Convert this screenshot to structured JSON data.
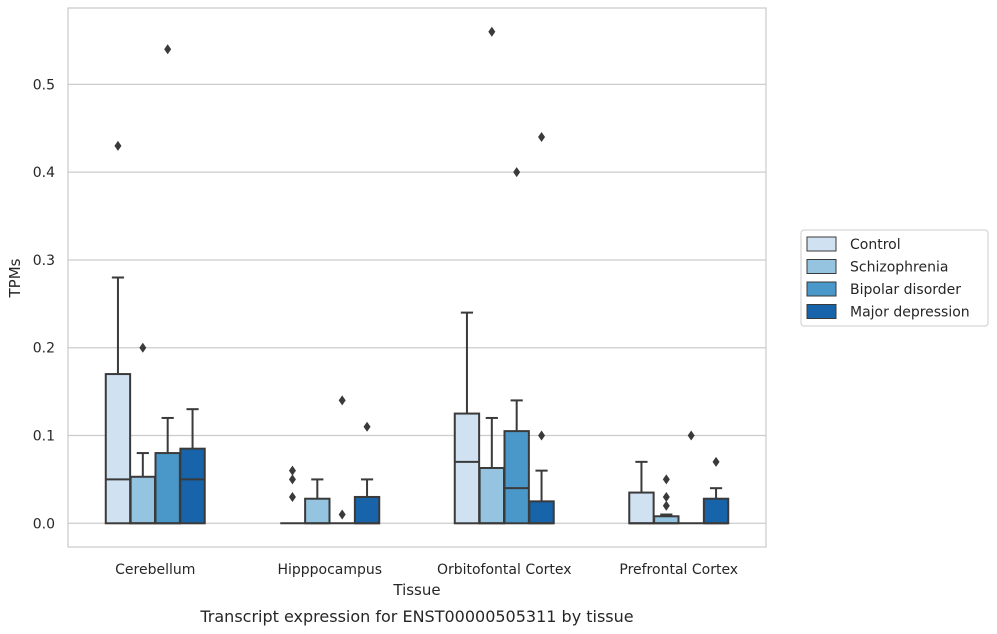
{
  "chart_data": {
    "type": "boxplot",
    "caption": "Transcript expression for ENST00000505311 by tissue",
    "xlabel": "Tissue",
    "ylabel": "TPMs",
    "ylim": [
      -0.027,
      0.587
    ],
    "yticks": [
      0.0,
      0.1,
      0.2,
      0.3,
      0.4,
      0.5
    ],
    "ytick_labels": [
      "0.0",
      "0.1",
      "0.2",
      "0.3",
      "0.4",
      "0.5"
    ],
    "grid": "horizontal",
    "legend_placement": "right",
    "categories": [
      "Cerebellum",
      "Hipppocampus",
      "Orbitofontal Cortex",
      "Prefrontal Cortex"
    ],
    "series": [
      {
        "name": "Control",
        "color": "#d0e1f2",
        "boxes": [
          {
            "q1": 0.0,
            "median": 0.05,
            "q3": 0.17,
            "whisker_low": 0.0,
            "whisker_high": 0.28,
            "outliers": [
              0.43
            ]
          },
          {
            "q1": 0.0,
            "median": 0.0,
            "q3": 0.0,
            "whisker_low": 0.0,
            "whisker_high": 0.0,
            "outliers": [
              0.03,
              0.05,
              0.06
            ]
          },
          {
            "q1": 0.0,
            "median": 0.07,
            "q3": 0.125,
            "whisker_low": 0.0,
            "whisker_high": 0.24,
            "outliers": []
          },
          {
            "q1": 0.0,
            "median": 0.0,
            "q3": 0.035,
            "whisker_low": 0.0,
            "whisker_high": 0.07,
            "outliers": []
          }
        ]
      },
      {
        "name": "Schizophrenia",
        "color": "#94c4df",
        "boxes": [
          {
            "q1": 0.0,
            "median": 0.0,
            "q3": 0.053,
            "whisker_low": 0.0,
            "whisker_high": 0.08,
            "outliers": [
              0.2
            ]
          },
          {
            "q1": 0.0,
            "median": 0.0,
            "q3": 0.028,
            "whisker_low": 0.0,
            "whisker_high": 0.05,
            "outliers": []
          },
          {
            "q1": 0.0,
            "median": 0.0,
            "q3": 0.063,
            "whisker_low": 0.0,
            "whisker_high": 0.12,
            "outliers": [
              0.56
            ]
          },
          {
            "q1": 0.0,
            "median": 0.0,
            "q3": 0.008,
            "whisker_low": 0.0,
            "whisker_high": 0.01,
            "outliers": [
              0.02,
              0.03,
              0.05
            ]
          }
        ]
      },
      {
        "name": "Bipolar disorder",
        "color": "#4a98c9",
        "boxes": [
          {
            "q1": 0.0,
            "median": 0.0,
            "q3": 0.08,
            "whisker_low": 0.0,
            "whisker_high": 0.12,
            "outliers": [
              0.54
            ]
          },
          {
            "q1": 0.0,
            "median": 0.0,
            "q3": 0.0,
            "whisker_low": 0.0,
            "whisker_high": 0.0,
            "outliers": [
              0.01,
              0.14
            ]
          },
          {
            "q1": 0.0,
            "median": 0.04,
            "q3": 0.105,
            "whisker_low": 0.0,
            "whisker_high": 0.14,
            "outliers": [
              0.4
            ]
          },
          {
            "q1": 0.0,
            "median": 0.0,
            "q3": 0.0,
            "whisker_low": 0.0,
            "whisker_high": 0.0,
            "outliers": [
              0.1
            ]
          }
        ]
      },
      {
        "name": "Major depression",
        "color": "#1764ab",
        "boxes": [
          {
            "q1": 0.0,
            "median": 0.05,
            "q3": 0.085,
            "whisker_low": 0.0,
            "whisker_high": 0.13,
            "outliers": []
          },
          {
            "q1": 0.0,
            "median": 0.0,
            "q3": 0.03,
            "whisker_low": 0.0,
            "whisker_high": 0.05,
            "outliers": [
              0.11
            ]
          },
          {
            "q1": 0.0,
            "median": 0.0,
            "q3": 0.025,
            "whisker_low": 0.0,
            "whisker_high": 0.06,
            "outliers": [
              0.1,
              0.44
            ]
          },
          {
            "q1": 0.0,
            "median": 0.0,
            "q3": 0.028,
            "whisker_low": 0.0,
            "whisker_high": 0.04,
            "outliers": [
              0.07
            ]
          }
        ]
      }
    ]
  }
}
